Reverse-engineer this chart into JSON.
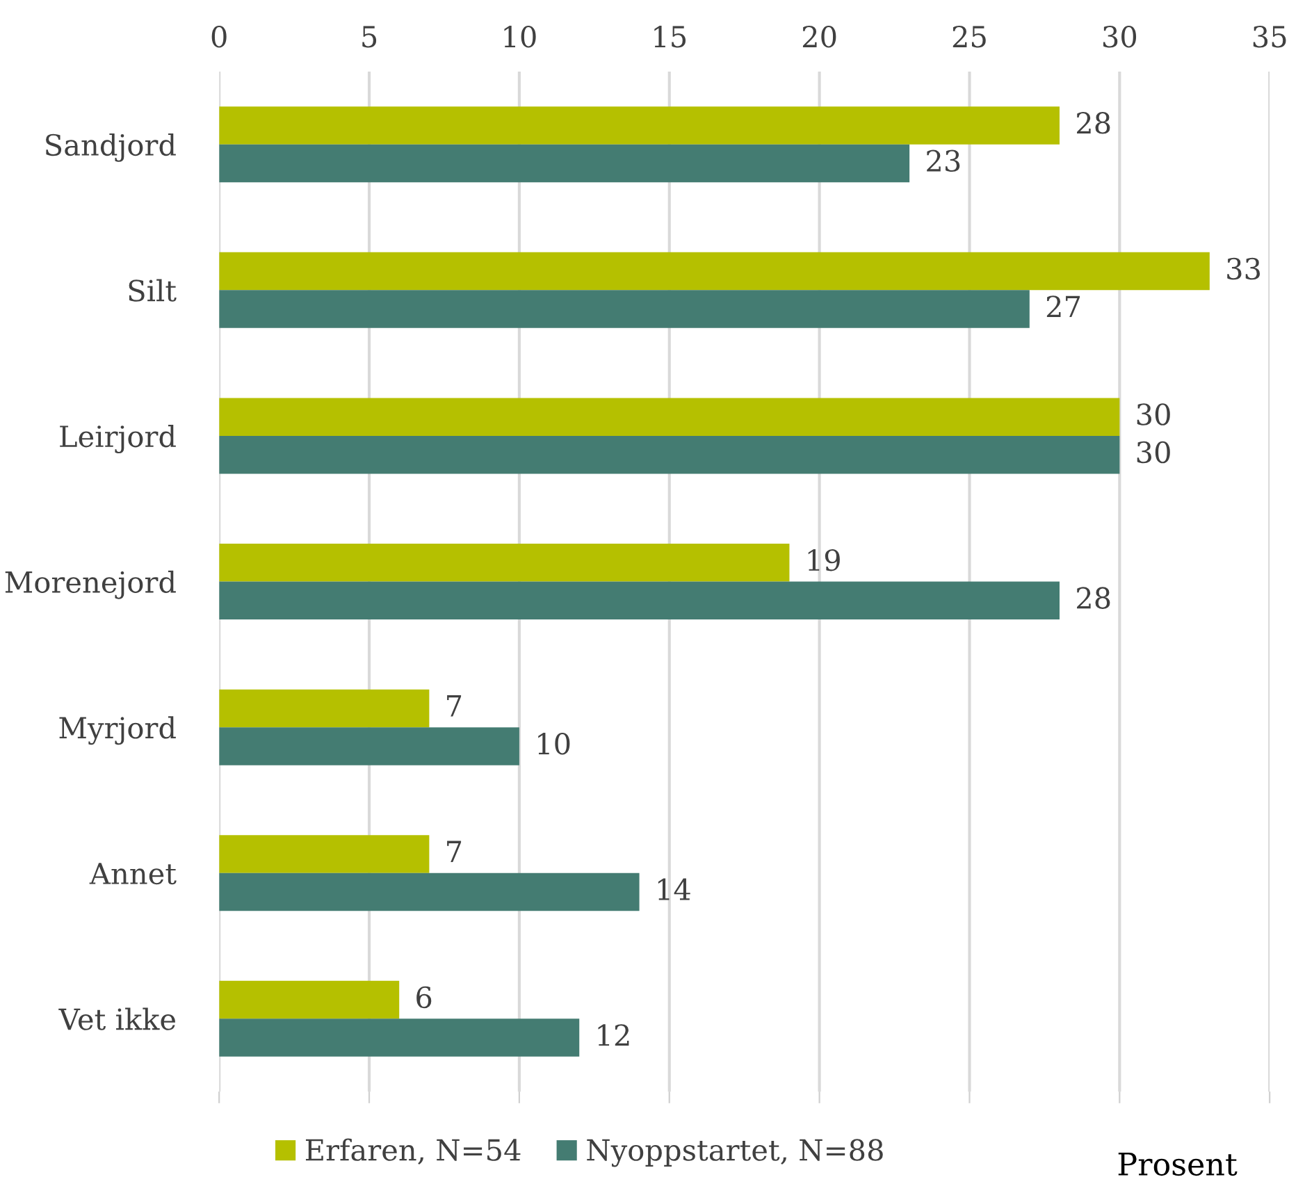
{
  "chart_data": {
    "type": "bar",
    "orientation": "horizontal",
    "categories": [
      "Sandjord",
      "Silt",
      "Leirjord",
      "Morenejord",
      "Myrjord",
      "Annet",
      "Vet ikke"
    ],
    "series": [
      {
        "name": "Erfaren, N=54",
        "color": "#b5c000",
        "values": [
          28,
          33,
          30,
          19,
          7,
          7,
          6
        ]
      },
      {
        "name": "Nyoppstartet, N=88",
        "color": "#447c72",
        "values": [
          23,
          27,
          30,
          28,
          10,
          14,
          12
        ]
      }
    ],
    "xlim": [
      0,
      35
    ],
    "xticks": [
      0,
      5,
      10,
      15,
      20,
      25,
      30,
      35
    ],
    "xlabel": "Prosent",
    "grid": "x",
    "legend": "bottom",
    "data_labels": true
  }
}
